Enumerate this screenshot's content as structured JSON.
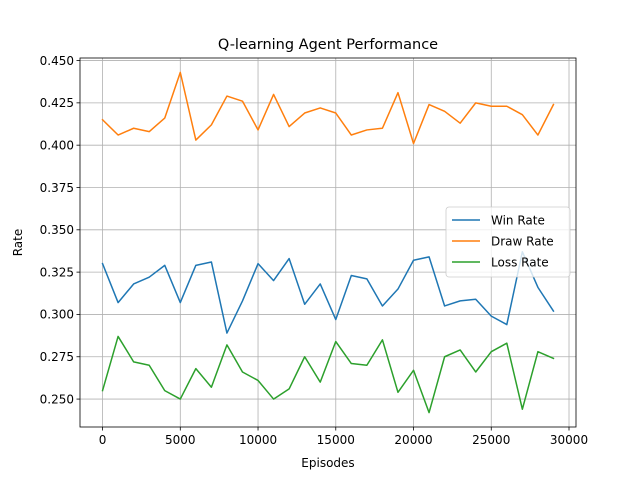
{
  "chart_data": {
    "type": "line",
    "title": "Q-learning Agent Performance",
    "xlabel": "Episodes",
    "ylabel": "Rate",
    "xlim": [
      -1450,
      30450
    ],
    "ylim": [
      0.2335,
      0.4515
    ],
    "xticks": [
      0,
      5000,
      10000,
      15000,
      20000,
      25000,
      30000
    ],
    "yticks": [
      0.25,
      0.275,
      0.3,
      0.325,
      0.35,
      0.375,
      0.4,
      0.425,
      0.45
    ],
    "xtick_labels": [
      "0",
      "5000",
      "10000",
      "15000",
      "20000",
      "25000",
      "30000"
    ],
    "ytick_labels": [
      "0.250",
      "0.275",
      "0.300",
      "0.325",
      "0.350",
      "0.375",
      "0.400",
      "0.425",
      "0.450"
    ],
    "grid": true,
    "legend_position": "center-right",
    "x": [
      0,
      1000,
      2000,
      3000,
      4000,
      5000,
      6000,
      7000,
      8000,
      9000,
      10000,
      11000,
      12000,
      13000,
      14000,
      15000,
      16000,
      17000,
      18000,
      19000,
      20000,
      21000,
      22000,
      23000,
      24000,
      25000,
      26000,
      27000,
      28000,
      29000
    ],
    "series": [
      {
        "name": "Win Rate",
        "color": "#1f77b4",
        "values": [
          0.33,
          0.307,
          0.318,
          0.322,
          0.329,
          0.307,
          0.329,
          0.331,
          0.289,
          0.308,
          0.33,
          0.32,
          0.333,
          0.306,
          0.318,
          0.297,
          0.323,
          0.321,
          0.305,
          0.315,
          0.332,
          0.334,
          0.305,
          0.308,
          0.309,
          0.299,
          0.294,
          0.337,
          0.316,
          0.302
        ]
      },
      {
        "name": "Draw Rate",
        "color": "#ff7f0e",
        "values": [
          0.415,
          0.406,
          0.41,
          0.408,
          0.416,
          0.443,
          0.403,
          0.412,
          0.429,
          0.426,
          0.409,
          0.43,
          0.411,
          0.419,
          0.422,
          0.419,
          0.406,
          0.409,
          0.41,
          0.431,
          0.401,
          0.424,
          0.42,
          0.413,
          0.425,
          0.423,
          0.423,
          0.418,
          0.406,
          0.424
        ]
      },
      {
        "name": "Loss Rate",
        "color": "#2ca02c",
        "values": [
          0.255,
          0.287,
          0.272,
          0.27,
          0.255,
          0.25,
          0.268,
          0.257,
          0.282,
          0.266,
          0.261,
          0.25,
          0.256,
          0.275,
          0.26,
          0.284,
          0.271,
          0.27,
          0.285,
          0.254,
          0.267,
          0.242,
          0.275,
          0.279,
          0.266,
          0.278,
          0.283,
          0.244,
          0.278,
          0.274
        ]
      }
    ]
  }
}
